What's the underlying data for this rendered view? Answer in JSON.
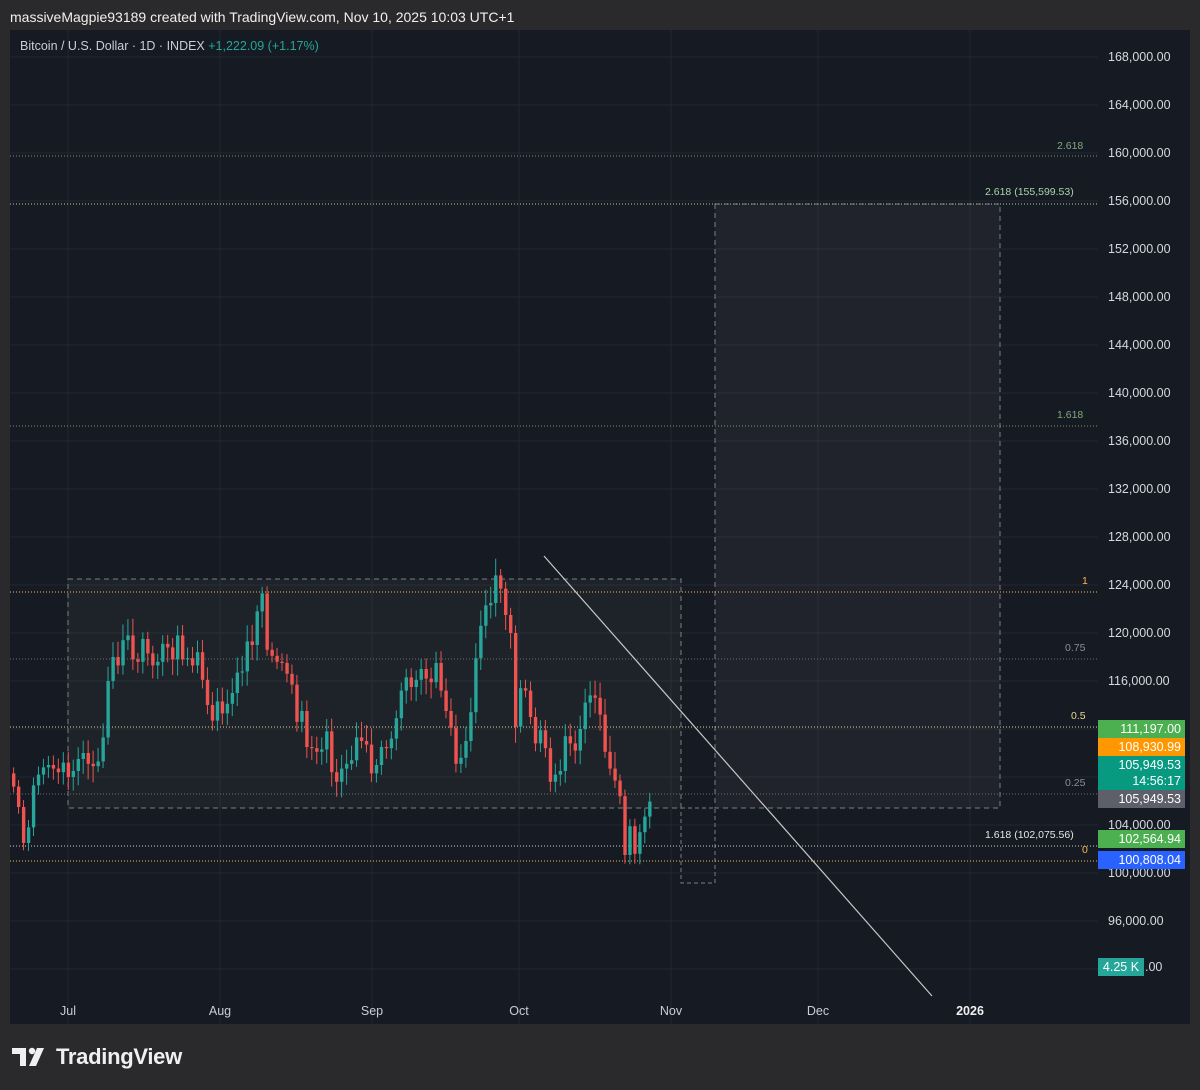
{
  "header": {
    "text": "massiveMagpie93189 created with TradingView.com, Nov 10, 2025 10:03 UTC+1"
  },
  "legend": {
    "symbol": "Bitcoin / U.S. Dollar · 1D · INDEX",
    "change": "+1,222.09 (+1.17%)"
  },
  "price_scale": {
    "ticks": [
      "168,000.00",
      "164,000.00",
      "160,000.00",
      "156,000.00",
      "152,000.00",
      "148,000.00",
      "144,000.00",
      "140,000.00",
      "136,000.00",
      "132,000.00",
      "128,000.00",
      "124,000.00",
      "120,000.00",
      "116,000.00",
      "104,000.00",
      "100,000.00",
      "96,000.00"
    ],
    "partial_tick": ".00"
  },
  "time_scale": {
    "labels": [
      "Jul",
      "Aug",
      "Sep",
      "Oct",
      "Nov",
      "Dec",
      "2026"
    ]
  },
  "badges": {
    "b1": "111,197.00",
    "b2": "108,930.99",
    "b3_price": "105,949.53",
    "b3_timer": "14:56:17",
    "b4": "105,949.53",
    "b5": "102,564.94",
    "b6": "100,808.04",
    "volume": "4.25 K"
  },
  "fib_labels": {
    "l2618_top": "2.618",
    "l2618_target": "2.618 (155,599.53)",
    "l1618_top": "1.618",
    "l1": "1",
    "l075": "0.75",
    "l05": "0.5",
    "l025": "0.25",
    "l1618_low": "1.618 (102,075.56)",
    "l0": "0"
  },
  "colors": {
    "background": "#161a22",
    "up": "#26a69a",
    "down": "#ef5350",
    "badge_green": "#4caf50",
    "badge_orange": "#ff9800",
    "badge_teal": "#089981",
    "badge_gray": "#5d606b",
    "badge_blue": "#2962ff"
  },
  "branding": {
    "logo_text": "TradingView"
  },
  "chart_data": {
    "type": "candlestick",
    "symbol": "Bitcoin / U.S. Dollar",
    "interval": "1D",
    "y_range": [
      92000,
      170000
    ],
    "x_range": [
      "2025-06-20",
      "2026-01-05"
    ],
    "price_levels": [
      {
        "label": "2.618",
        "value": 159300
      },
      {
        "label": "2.618 (155,599.53)",
        "value": 155599.53
      },
      {
        "label": "1.618",
        "value": 136800
      },
      {
        "label": "1",
        "value": 123200
      },
      {
        "label": "0.75",
        "value": 117600
      },
      {
        "label": "0.5",
        "value": 111197
      },
      {
        "label": "0.25",
        "value": 105949.53
      },
      {
        "label": "1.618 (102,075.56)",
        "value": 102075.56
      },
      {
        "label": "0",
        "value": 100808.04
      }
    ],
    "last_price": 105949.53
  }
}
